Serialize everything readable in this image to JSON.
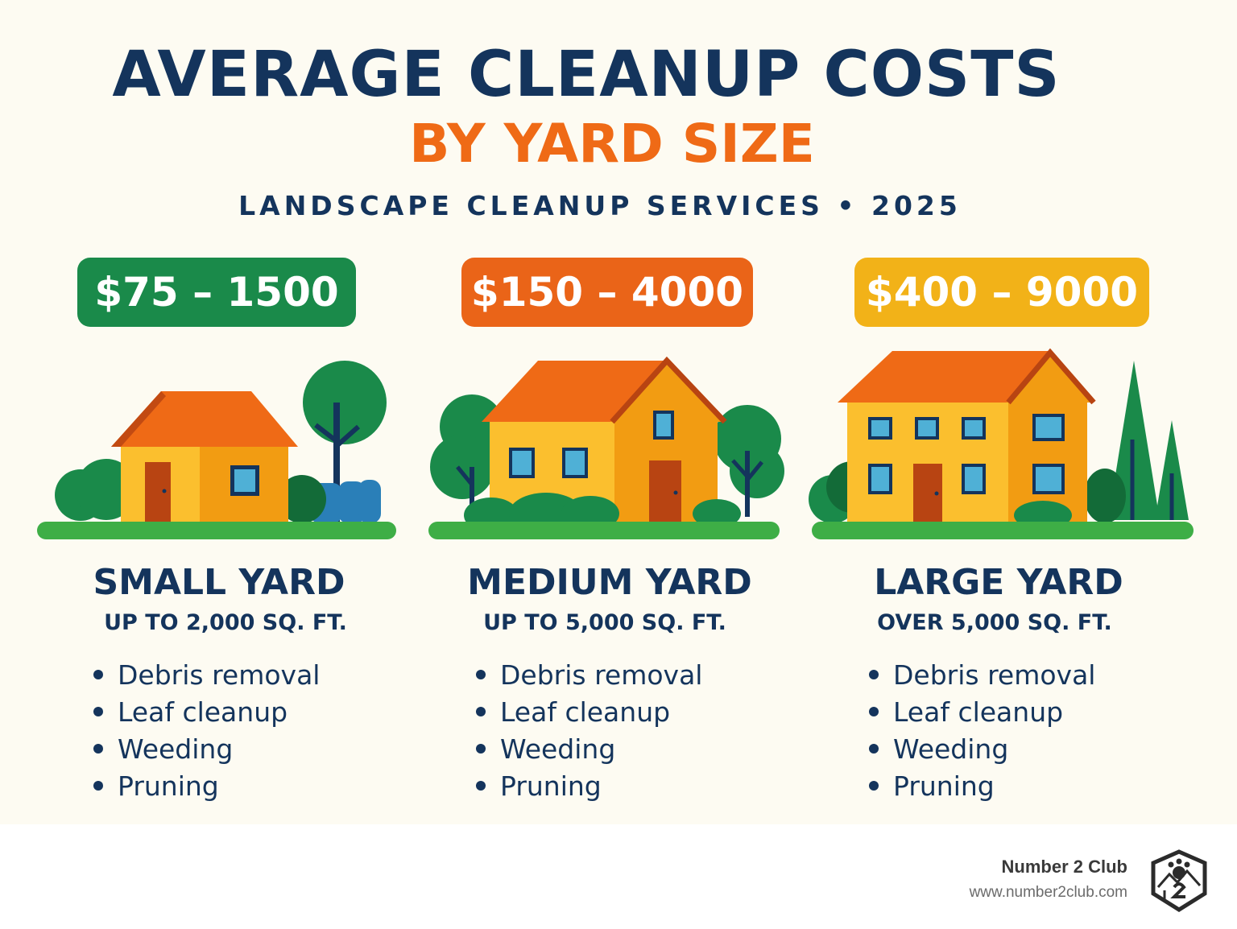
{
  "header": {
    "title": "AVERAGE CLEANUP COSTS",
    "subtitle": "BY YARD SIZE",
    "tagline": "LANDSCAPE CLEANUP SERVICES • 2025"
  },
  "colors": {
    "navy": "#14345c",
    "orange": "#ef6a16",
    "green": "#1a8a4a",
    "yellow": "#f2b218",
    "background": "#fdfbf2"
  },
  "yards": [
    {
      "price": "$75 – 1500",
      "title": "SMALL YARD",
      "size": "UP TO 2,000 SQ. FT.",
      "services": [
        "Debris removal",
        "Leaf cleanup",
        "Weeding",
        "Pruning"
      ],
      "icon": "small-house-icon",
      "badge_color": "#1a8a4a"
    },
    {
      "price": "$150 – 4000",
      "title": "MEDIUM YARD",
      "size": "UP TO 5,000 SQ. FT.",
      "services": [
        "Debris removal",
        "Leaf cleanup",
        "Weeding",
        "Pruning"
      ],
      "icon": "medium-house-icon",
      "badge_color": "#ea6418"
    },
    {
      "price": "$400 – 9000",
      "title": "LARGE YARD",
      "size": "OVER 5,000 SQ. FT.",
      "services": [
        "Debris removal",
        "Leaf cleanup",
        "Weeding",
        "Pruning"
      ],
      "icon": "large-house-icon",
      "badge_color": "#f2b218"
    }
  ],
  "brand": {
    "name": "Number 2 Club",
    "url": "www.number2club.com",
    "logo_icon": "number-2-club-logo-icon"
  }
}
